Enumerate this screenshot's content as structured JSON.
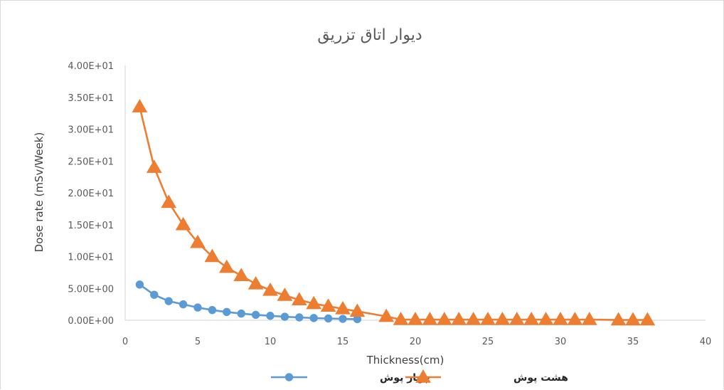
{
  "chart_data": {
    "type": "line",
    "title": "دیوار اتاق تزریق",
    "xlabel": "Thickness(cm)",
    "ylabel": "Dose rate (mSv/Week)",
    "xlim": [
      0,
      40
    ],
    "ylim": [
      0,
      40
    ],
    "x_ticks": [
      0,
      5,
      10,
      15,
      20,
      25,
      30,
      35,
      40
    ],
    "x_tick_labels": [
      "0",
      "5",
      "10",
      "15",
      "20",
      "25",
      "30",
      "35",
      "40"
    ],
    "y_ticks": [
      0,
      5,
      10,
      15,
      20,
      25,
      30,
      35,
      40
    ],
    "y_tick_labels": [
      "0.00E+00",
      "5.00E+00",
      "1.00E+01",
      "1.50E+01",
      "2.00E+01",
      "2.50E+01",
      "3.00E+01",
      "3.50E+01",
      "4.00E+01"
    ],
    "grid": "none",
    "legend_position": "bottom",
    "series": [
      {
        "name": "چهار پوش",
        "color": "#5b9bd5",
        "marker": "circle",
        "x": [
          1,
          2,
          3,
          4,
          5,
          6,
          7,
          8,
          9,
          10,
          11,
          12,
          13,
          14,
          15,
          16
        ],
        "y": [
          5.6,
          4.0,
          3.0,
          2.5,
          2.0,
          1.6,
          1.3,
          1.05,
          0.85,
          0.7,
          0.55,
          0.45,
          0.35,
          0.28,
          0.22,
          0.18
        ]
      },
      {
        "name": "هشت پوش",
        "color": "#ed7d31",
        "marker": "triangle",
        "x": [
          1,
          2,
          3,
          4,
          5,
          6,
          7,
          8,
          9,
          10,
          11,
          12,
          13,
          14,
          15,
          16,
          18,
          19,
          20,
          21,
          22,
          23,
          24,
          25,
          26,
          27,
          28,
          29,
          30,
          31,
          32,
          34,
          35,
          36
        ],
        "y": [
          33.5,
          24.0,
          18.5,
          15.0,
          12.2,
          10.0,
          8.3,
          7.0,
          5.7,
          4.7,
          3.9,
          3.2,
          2.6,
          2.2,
          1.8,
          1.4,
          0.6,
          0.1,
          0.1,
          0.1,
          0.1,
          0.1,
          0.1,
          0.1,
          0.1,
          0.1,
          0.1,
          0.1,
          0.1,
          0.1,
          0.1,
          0.05,
          0.05,
          0.05
        ]
      }
    ]
  }
}
